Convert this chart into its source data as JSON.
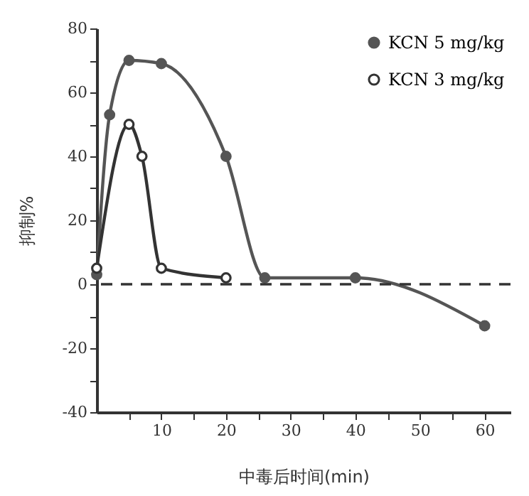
{
  "chart_data": {
    "type": "line",
    "xlabel": "中毒后时间(min)",
    "ylabel": "抑制%",
    "xlim": [
      0,
      64
    ],
    "ylim": [
      -40,
      80
    ],
    "xticks": [
      {
        "value": 5,
        "label": null
      },
      10,
      {
        "value": 15,
        "label": null
      },
      20,
      {
        "value": 25,
        "label": null
      },
      30,
      {
        "value": 35,
        "label": null
      },
      40,
      {
        "value": 45,
        "label": null
      },
      50,
      {
        "value": 55,
        "label": null
      },
      60
    ],
    "yticks": [
      -40,
      {
        "value": -30,
        "label": null
      },
      -20,
      {
        "value": -10,
        "label": null
      },
      0,
      {
        "value": 10,
        "label": null
      },
      20,
      {
        "value": 30,
        "label": null
      },
      40,
      {
        "value": 50,
        "label": null
      },
      60,
      {
        "value": 70,
        "label": null
      },
      80
    ],
    "series": [
      {
        "name": "KCN 5 mg/kg",
        "color": "#555555",
        "x": [
          0,
          2,
          5,
          10,
          20,
          26,
          40,
          60
        ],
        "values": [
          3,
          53,
          70,
          69,
          40,
          2,
          2,
          -13
        ]
      },
      {
        "name": "KCN 3 mg/kg",
        "color": "#333333",
        "x": [
          0,
          5,
          7,
          10,
          20
        ],
        "values": [
          5,
          50,
          40,
          5,
          2
        ]
      }
    ],
    "marker": "circle",
    "line_style": "solid",
    "grid": false,
    "legend": "top right",
    "ref_lines": [
      {
        "axis": "y",
        "value": 0,
        "line_style": "dashed",
        "color": "#333333"
      }
    ]
  }
}
